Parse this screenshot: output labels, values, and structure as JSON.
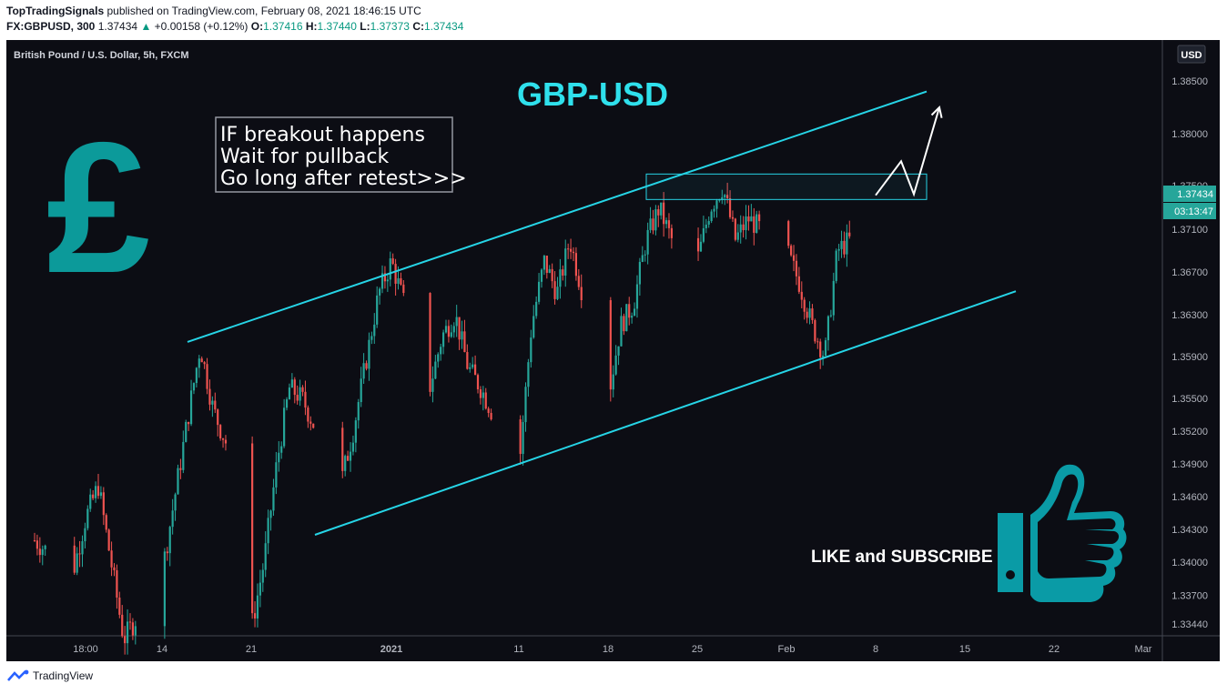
{
  "header": {
    "author": "TopTradingSignals",
    "published_text": "published on TradingView.com, February 08, 2021 18:46:15 UTC",
    "symbol": "FX:GBPUSD, 300",
    "last": "1.37434",
    "change_arrow": "▲",
    "change": "+0.00158 (+0.12%)",
    "o_label": "O:",
    "o": "1.37416",
    "h_label": "H:",
    "h": "1.37440",
    "l_label": "L:",
    "l": "1.37373",
    "c_label": "C:",
    "c": "1.37434"
  },
  "chart": {
    "pane_title": "British Pound / U.S. Dollar, 5h, FXCM",
    "big_title": "GBP-USD",
    "note_lines": [
      "IF breakout happens",
      "Wait for pullback",
      "Go long after retest>>>"
    ],
    "currency_badge": "USD",
    "price_tag": "1.37434",
    "countdown_tag": "03:13:47",
    "hidden_tick": "1.37500",
    "cta": "LIKE and SUBSCRIBE",
    "pound_symbol": "£",
    "thumb_icon": "thumbs-up-icon"
  },
  "colors": {
    "background": "#0c0d14",
    "up": "#26a69a",
    "down": "#ef5350",
    "channel": "#26d4e6",
    "title": "#2fe0ec",
    "pound": "#0c9a9a",
    "price_tag": "#26a69a"
  },
  "chart_data": {
    "type": "candlestick",
    "symbol": "GBPUSD",
    "y_ticks": [
      1.3344,
      1.337,
      1.34,
      1.343,
      1.346,
      1.349,
      1.352,
      1.355,
      1.359,
      1.363,
      1.367,
      1.371,
      1.38,
      1.385
    ],
    "y_tick_labels": [
      "1.33440",
      "1.33700",
      "1.34000",
      "1.34300",
      "1.34600",
      "1.34900",
      "1.35200",
      "1.35500",
      "1.35900",
      "1.36300",
      "1.36700",
      "1.37100",
      "1.38000",
      "1.38500"
    ],
    "x_ticks": [
      "18:00",
      "14",
      "21",
      "2021",
      "11",
      "18",
      "25",
      "Feb",
      "8",
      "15",
      "22",
      "Mar"
    ],
    "x_tick_dates": [
      "2020-12-09",
      "2020-12-14",
      "2020-12-21",
      "2021-01-01",
      "2021-01-11",
      "2021-01-18",
      "2021-01-25",
      "2021-02-01",
      "2021-02-08",
      "2021-02-15",
      "2021-02-22",
      "2021-03-01"
    ],
    "last_price": 1.37434,
    "close_waypoints": [
      [
        "2020-12-04",
        1.342
      ],
      [
        "2020-12-07",
        1.339
      ],
      [
        "2020-12-08",
        1.344
      ],
      [
        "2020-12-09",
        1.347
      ],
      [
        "2020-12-11",
        1.333
      ],
      [
        "2020-12-14",
        1.339
      ],
      [
        "2020-12-15",
        1.346
      ],
      [
        "2020-12-16",
        1.353
      ],
      [
        "2020-12-17",
        1.36
      ],
      [
        "2020-12-18",
        1.354
      ],
      [
        "2020-12-19",
        1.351
      ],
      [
        "2020-12-21",
        1.334
      ],
      [
        "2020-12-22",
        1.34
      ],
      [
        "2020-12-23",
        1.349
      ],
      [
        "2020-12-24",
        1.356
      ],
      [
        "2020-12-25",
        1.355
      ],
      [
        "2020-12-28",
        1.347
      ],
      [
        "2020-12-29",
        1.352
      ],
      [
        "2020-12-31",
        1.365
      ],
      [
        "2021-01-01",
        1.368
      ],
      [
        "2021-01-02",
        1.364
      ],
      [
        "2021-01-04",
        1.356
      ],
      [
        "2021-01-05",
        1.361
      ],
      [
        "2021-01-06",
        1.363
      ],
      [
        "2021-01-07",
        1.358
      ],
      [
        "2021-01-08",
        1.356
      ],
      [
        "2021-01-11",
        1.3485
      ],
      [
        "2021-01-12",
        1.362
      ],
      [
        "2021-01-13",
        1.368
      ],
      [
        "2021-01-14",
        1.365
      ],
      [
        "2021-01-15",
        1.37
      ],
      [
        "2021-01-18",
        1.355
      ],
      [
        "2021-01-19",
        1.362
      ],
      [
        "2021-01-20",
        1.364
      ],
      [
        "2021-01-21",
        1.37
      ],
      [
        "2021-01-22",
        1.373
      ],
      [
        "2021-01-23",
        1.37
      ],
      [
        "2021-01-25",
        1.368
      ],
      [
        "2021-01-26",
        1.373
      ],
      [
        "2021-01-27",
        1.375
      ],
      [
        "2021-01-28",
        1.37
      ],
      [
        "2021-01-29",
        1.372
      ],
      [
        "2021-02-01",
        1.369
      ],
      [
        "2021-02-02",
        1.366
      ],
      [
        "2021-02-03",
        1.362
      ],
      [
        "2021-02-04",
        1.359
      ],
      [
        "2021-02-05",
        1.369
      ],
      [
        "2021-02-06",
        1.37
      ],
      [
        "2021-02-08",
        1.37434
      ]
    ],
    "channel_upper": [
      [
        "2020-12-16",
        1.3604
      ],
      [
        "2021-02-12",
        1.384
      ]
    ],
    "channel_lower": [
      [
        "2020-12-26",
        1.3425
      ],
      [
        "2021-02-19",
        1.3652
      ]
    ],
    "resistance_zone": {
      "from": "2021-01-21",
      "to": "2021-02-12",
      "price_low": 1.3738,
      "price_high": 1.3762
    },
    "projection_path": [
      [
        "2021-02-08",
        1.3742
      ],
      [
        "2021-02-10",
        1.3774
      ],
      [
        "2021-02-11",
        1.3743
      ],
      [
        "2021-02-13",
        1.3825
      ]
    ]
  }
}
